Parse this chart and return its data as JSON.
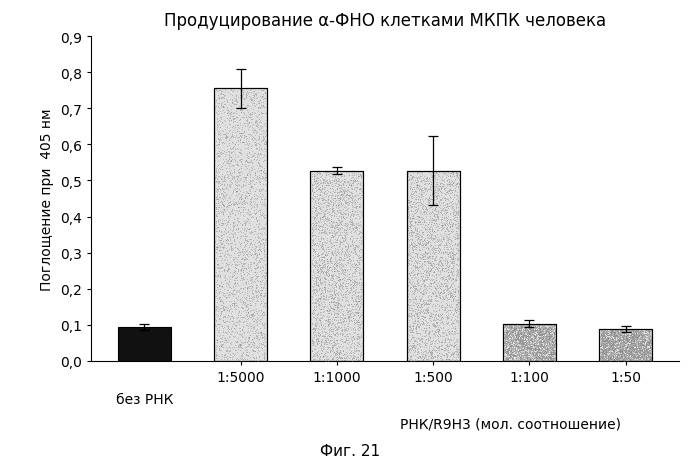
{
  "title": "Продуцирование α-ФНО клетками МКПК человека",
  "xlabel": "РНК/R9H3 (мол. соотношение)",
  "ylabel": "Поглощение при  405 нм",
  "figcaption": "Фиг. 21",
  "categories": [
    "без РНК",
    "1:5000",
    "1:1000",
    "1:500",
    "1:100",
    "1:50"
  ],
  "values": [
    0.093,
    0.755,
    0.527,
    0.527,
    0.103,
    0.088
  ],
  "errors": [
    0.008,
    0.055,
    0.01,
    0.095,
    0.01,
    0.008
  ],
  "bar_colors": [
    "#111111",
    "#d8d8d8",
    "#d8d8d8",
    "#d8d8d8",
    "#d8d8d8",
    "#d8d8d8"
  ],
  "bar_edgecolors": [
    "#000000",
    "#000000",
    "#000000",
    "#000000",
    "#000000",
    "#000000"
  ],
  "is_speckled": [
    false,
    true,
    true,
    true,
    true,
    true
  ],
  "ylim": [
    0.0,
    0.9
  ],
  "yticks": [
    0.0,
    0.1,
    0.2,
    0.3,
    0.4,
    0.5,
    0.6,
    0.7,
    0.8,
    0.9
  ],
  "ytick_labels": [
    "0,0",
    "0,1",
    "0,2",
    "0,3",
    "0,4",
    "0,5",
    "0,6",
    "0,7",
    "0,8",
    "0,9"
  ],
  "background_color": "#ffffff",
  "title_fontsize": 12,
  "axis_fontsize": 10,
  "tick_fontsize": 10,
  "caption_fontsize": 11,
  "bar_width": 0.55
}
